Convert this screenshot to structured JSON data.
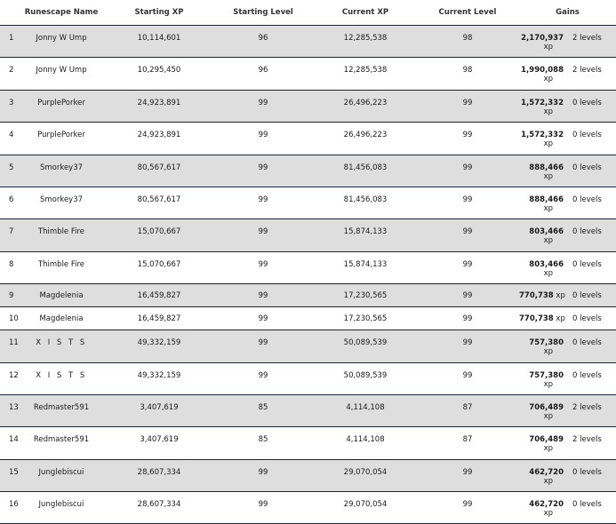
{
  "table": {
    "headers": {
      "name": "Runescape Name",
      "starting_xp": "Starting XP",
      "starting_level": "Starting Level",
      "current_xp": "Current XP",
      "current_level": "Current Level",
      "gains": "Gains"
    },
    "rows": [
      {
        "rank": "1",
        "name": "Jonny W Ump",
        "starting_xp": "10,114,601",
        "starting_level": "96",
        "current_xp": "12,285,538",
        "current_level": "98",
        "gain_xp": "2,170,937",
        "gain_xp_unit": "xp",
        "gain_levels": "2 levels"
      },
      {
        "rank": "2",
        "name": "Jonny W Ump",
        "starting_xp": "10,295,450",
        "starting_level": "96",
        "current_xp": "12,285,538",
        "current_level": "98",
        "gain_xp": "1,990,088",
        "gain_xp_unit": "xp",
        "gain_levels": "2 levels"
      },
      {
        "rank": "3",
        "name": "PurplePorker",
        "starting_xp": "24,923,891",
        "starting_level": "99",
        "current_xp": "26,496,223",
        "current_level": "99",
        "gain_xp": "1,572,332",
        "gain_xp_unit": "xp",
        "gain_levels": "0 levels"
      },
      {
        "rank": "4",
        "name": "PurplePorker",
        "starting_xp": "24,923,891",
        "starting_level": "99",
        "current_xp": "26,496,223",
        "current_level": "99",
        "gain_xp": "1,572,332",
        "gain_xp_unit": "xp",
        "gain_levels": "0 levels"
      },
      {
        "rank": "5",
        "name": "Smorkey37",
        "starting_xp": "80,567,617",
        "starting_level": "99",
        "current_xp": "81,456,083",
        "current_level": "99",
        "gain_xp": "888,466",
        "gain_xp_unit": "xp",
        "gain_levels": "0 levels"
      },
      {
        "rank": "6",
        "name": "Smorkey37",
        "starting_xp": "80,567,617",
        "starting_level": "99",
        "current_xp": "81,456,083",
        "current_level": "99",
        "gain_xp": "888,466",
        "gain_xp_unit": "xp",
        "gain_levels": "0 levels"
      },
      {
        "rank": "7",
        "name": "Thimble Fire",
        "starting_xp": "15,070,667",
        "starting_level": "99",
        "current_xp": "15,874,133",
        "current_level": "99",
        "gain_xp": "803,466",
        "gain_xp_unit": "xp",
        "gain_levels": "0 levels"
      },
      {
        "rank": "8",
        "name": "Thimble Fire",
        "starting_xp": "15,070,667",
        "starting_level": "99",
        "current_xp": "15,874,133",
        "current_level": "99",
        "gain_xp": "803,466",
        "gain_xp_unit": "xp",
        "gain_levels": "0 levels"
      },
      {
        "rank": "9",
        "name": "Magdelenia",
        "starting_xp": "16,459,827",
        "starting_level": "99",
        "current_xp": "17,230,565",
        "current_level": "99",
        "gain_xp": "770,738",
        "gain_xp_unit": "xp",
        "gain_levels": "0 levels",
        "inline": true
      },
      {
        "rank": "10",
        "name": "Magdelenia",
        "starting_xp": "16,459,827",
        "starting_level": "99",
        "current_xp": "17,230,565",
        "current_level": "99",
        "gain_xp": "770,738",
        "gain_xp_unit": "xp",
        "gain_levels": "0 levels",
        "inline": true
      },
      {
        "rank": "11",
        "name": "X I S T S",
        "starting_xp": "49,332,159",
        "starting_level": "99",
        "current_xp": "50,089,539",
        "current_level": "99",
        "gain_xp": "757,380",
        "gain_xp_unit": "xp",
        "gain_levels": "0 levels"
      },
      {
        "rank": "12",
        "name": "X I S T S",
        "starting_xp": "49,332,159",
        "starting_level": "99",
        "current_xp": "50,089,539",
        "current_level": "99",
        "gain_xp": "757,380",
        "gain_xp_unit": "xp",
        "gain_levels": "0 levels"
      },
      {
        "rank": "13",
        "name": "Redmaster591",
        "starting_xp": "3,407,619",
        "starting_level": "85",
        "current_xp": "4,114,108",
        "current_level": "87",
        "gain_xp": "706,489",
        "gain_xp_unit": "xp",
        "gain_levels": "2 levels"
      },
      {
        "rank": "14",
        "name": "Redmaster591",
        "starting_xp": "3,407,619",
        "starting_level": "85",
        "current_xp": "4,114,108",
        "current_level": "87",
        "gain_xp": "706,489",
        "gain_xp_unit": "xp",
        "gain_levels": "2 levels"
      },
      {
        "rank": "15",
        "name": "Junglebiscui",
        "starting_xp": "28,607,334",
        "starting_level": "99",
        "current_xp": "29,070,054",
        "current_level": "99",
        "gain_xp": "462,720",
        "gain_xp_unit": "xp",
        "gain_levels": "0 levels"
      },
      {
        "rank": "16",
        "name": "Junglebiscui",
        "starting_xp": "28,607,334",
        "starting_level": "99",
        "current_xp": "29,070,054",
        "current_level": "99",
        "gain_xp": "462,720",
        "gain_xp_unit": "xp",
        "gain_levels": "0 levels"
      }
    ]
  }
}
